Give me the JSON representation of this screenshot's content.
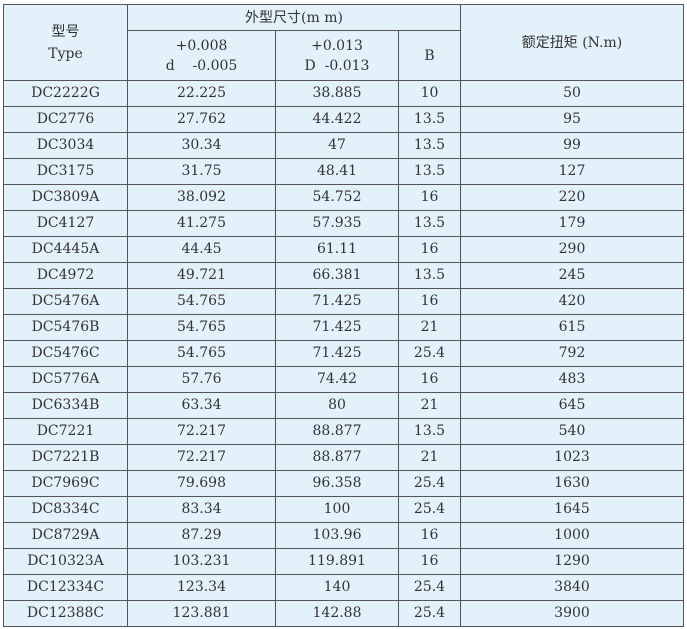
{
  "header": {
    "model": "型号",
    "type": "Type",
    "dims": "外型尺寸(m m)",
    "d_upper": "+0.008",
    "d_label": "d",
    "d_lower": "-0.005",
    "D_upper": "+0.013",
    "D_label": "D",
    "D_lower": "-0.013",
    "B": "B",
    "torque": "额定扭矩 (N.m)"
  },
  "rows": [
    [
      "DC2222G",
      "22.225",
      "38.885",
      "10",
      "50"
    ],
    [
      "DC2776",
      "27.762",
      "44.422",
      "13.5",
      "95"
    ],
    [
      "DC3034",
      "30.34",
      "47",
      "13.5",
      "99"
    ],
    [
      "DC3175",
      "31.75",
      "48.41",
      "13.5",
      "127"
    ],
    [
      "DC3809A",
      "38.092",
      "54.752",
      "16",
      "220"
    ],
    [
      "DC4127",
      "41.275",
      "57.935",
      "13.5",
      "179"
    ],
    [
      "DC4445A",
      "44.45",
      "61.11",
      "16",
      "290"
    ],
    [
      "DC4972",
      "49.721",
      "66.381",
      "13.5",
      "245"
    ],
    [
      "DC5476A",
      "54.765",
      "71.425",
      "16",
      "420"
    ],
    [
      "DC5476B",
      "54.765",
      "71.425",
      "21",
      "615"
    ],
    [
      "DC5476C",
      "54.765",
      "71.425",
      "25.4",
      "792"
    ],
    [
      "DC5776A",
      "57.76",
      "74.42",
      "16",
      "483"
    ],
    [
      "DC6334B",
      "63.34",
      "80",
      "21",
      "645"
    ],
    [
      "DC7221",
      "72.217",
      "88.877",
      "13.5",
      "540"
    ],
    [
      "DC7221B",
      "72.217",
      "88.877",
      "21",
      "1023"
    ],
    [
      "DC7969C",
      "79.698",
      "96.358",
      "25.4",
      "1630"
    ],
    [
      "DC8334C",
      "83.34",
      "100",
      "25.4",
      "1645"
    ],
    [
      "DC8729A",
      "87.29",
      "103.96",
      "16",
      "1000"
    ],
    [
      "DC10323A",
      "103.231",
      "119.891",
      "16",
      "1290"
    ],
    [
      "DC12334C",
      "123.34",
      "140",
      "25.4",
      "3840"
    ],
    [
      "DC12388C",
      "123.881",
      "142.88",
      "25.4",
      "3900"
    ]
  ]
}
